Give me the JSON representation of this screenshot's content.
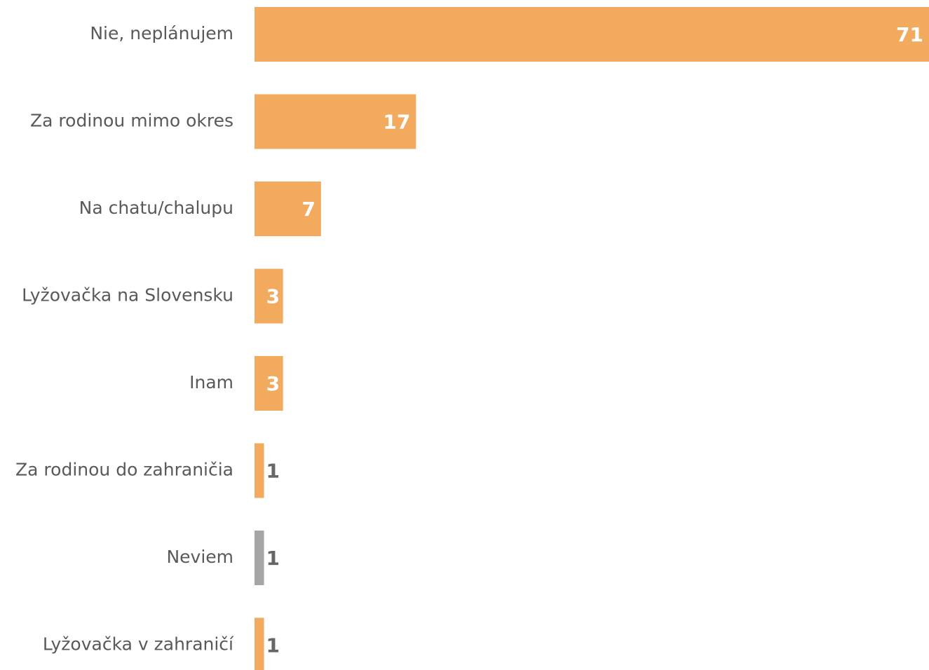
{
  "chart_data": {
    "type": "bar",
    "orientation": "horizontal",
    "categories": [
      "Nie, neplánujem",
      "Za rodinou mimo okres",
      "Na chatu/chalupu",
      "Lyžovačka na Slovensku",
      "Inam",
      "Za rodinou do zahraničia",
      "Neviem",
      "Lyžovačka v zahraničí"
    ],
    "values": [
      71,
      17,
      7,
      3,
      3,
      1,
      1,
      1
    ],
    "colors": [
      "#f2aa5e",
      "#f2aa5e",
      "#f2aa5e",
      "#f2aa5e",
      "#f2aa5e",
      "#f2aa5e",
      "#a6a6a6",
      "#f2aa5e"
    ],
    "xlim": [
      0,
      71
    ]
  }
}
